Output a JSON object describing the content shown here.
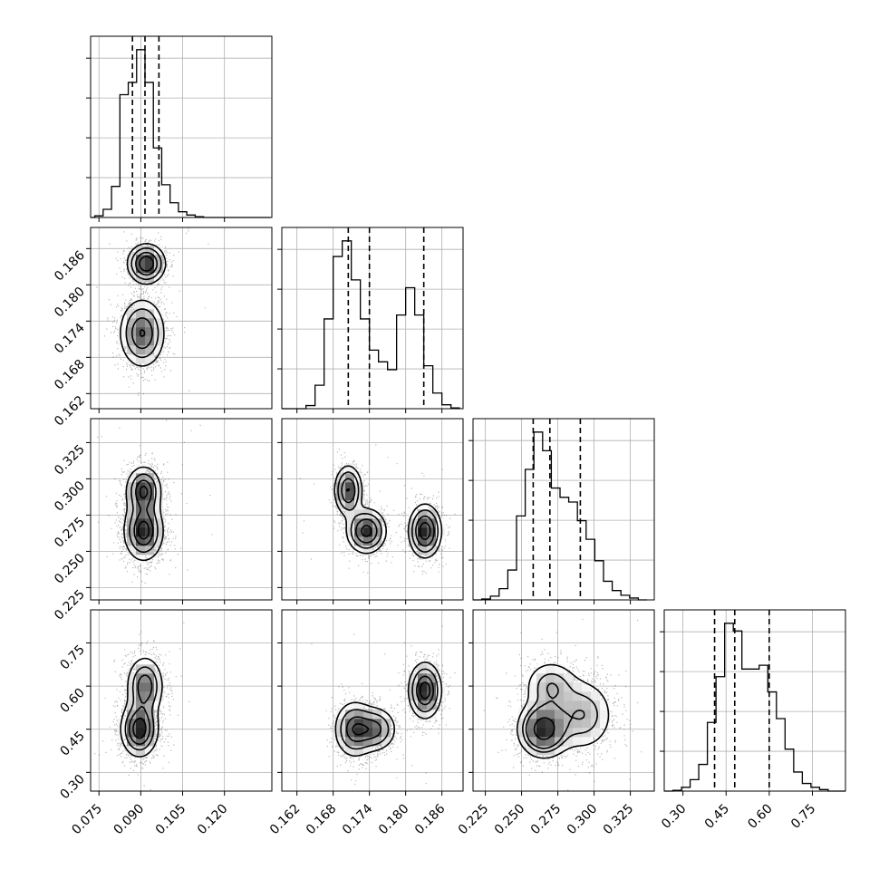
{
  "chart_data": {
    "type": "corner",
    "n_params": 4,
    "grid": true,
    "params": [
      {
        "range": [
          0.072,
          0.137
        ],
        "ticks": [
          0.075,
          0.09,
          0.105,
          0.12
        ],
        "tick_labels": [
          "0.075",
          "0.090",
          "0.105",
          "0.120"
        ],
        "quantiles": [
          0.087,
          0.0915,
          0.0965
        ]
      },
      {
        "range": [
          0.1595,
          0.1895
        ],
        "ticks": [
          0.162,
          0.168,
          0.174,
          0.18,
          0.186
        ],
        "tick_labels": [
          "0.162",
          "0.168",
          "0.174",
          "0.180",
          "0.186"
        ],
        "quantiles": [
          0.1705,
          0.174,
          0.183
        ]
      },
      {
        "range": [
          0.2165,
          0.3415
        ],
        "ticks": [
          0.225,
          0.25,
          0.275,
          0.3,
          0.325
        ],
        "tick_labels": [
          "0.225",
          "0.250",
          "0.275",
          "0.300",
          "0.325"
        ],
        "quantiles": [
          0.258,
          0.2695,
          0.2905
        ]
      },
      {
        "range": [
          0.235,
          0.865
        ],
        "ticks": [
          0.3,
          0.45,
          0.6,
          0.75
        ],
        "tick_labels": [
          "0.30",
          "0.45",
          "0.60",
          "0.75"
        ],
        "quantiles": [
          0.41,
          0.48,
          0.6
        ]
      }
    ],
    "histograms": [
      {
        "edges": [
          0.0705,
          0.0735,
          0.0765,
          0.0795,
          0.0825,
          0.0855,
          0.0885,
          0.0915,
          0.0945,
          0.0975,
          0.1005,
          0.1035,
          0.1065,
          0.1095,
          0.1125,
          0.1155,
          0.1185,
          0.1215,
          0.1245,
          0.1275,
          0.1305,
          0.1335,
          0.1365
        ],
        "counts": [
          0,
          2,
          10,
          38,
          150,
          165,
          205,
          165,
          85,
          40,
          18,
          7,
          3,
          1,
          0,
          0,
          0,
          0,
          0,
          0,
          0,
          0
        ]
      },
      {
        "edges": [
          0.159,
          0.1605,
          0.162,
          0.1635,
          0.165,
          0.1665,
          0.168,
          0.1695,
          0.171,
          0.1725,
          0.174,
          0.1755,
          0.177,
          0.1785,
          0.18,
          0.1815,
          0.183,
          0.1845,
          0.186,
          0.1875,
          0.189
        ],
        "counts": [
          0,
          0,
          0,
          4,
          30,
          115,
          195,
          215,
          165,
          115,
          75,
          60,
          50,
          120,
          155,
          120,
          55,
          20,
          5,
          1
        ]
      },
      {
        "edges": [
          0.2165,
          0.2225,
          0.2285,
          0.2345,
          0.2405,
          0.2465,
          0.2525,
          0.2585,
          0.2645,
          0.2705,
          0.2765,
          0.2825,
          0.2885,
          0.2945,
          0.3005,
          0.3065,
          0.3125,
          0.3185,
          0.3245,
          0.3305,
          0.3365
        ],
        "counts": [
          0,
          1,
          4,
          12,
          32,
          90,
          140,
          180,
          160,
          120,
          110,
          105,
          85,
          65,
          42,
          20,
          10,
          5,
          2,
          0
        ]
      },
      {
        "edges": [
          0.235,
          0.265,
          0.295,
          0.325,
          0.355,
          0.385,
          0.415,
          0.445,
          0.475,
          0.505,
          0.535,
          0.565,
          0.595,
          0.625,
          0.655,
          0.685,
          0.715,
          0.745,
          0.775,
          0.805,
          0.835,
          0.865
        ],
        "counts": [
          0,
          1,
          5,
          15,
          35,
          90,
          150,
          220,
          210,
          160,
          160,
          165,
          130,
          95,
          55,
          25,
          10,
          5,
          2,
          0,
          0
        ]
      }
    ],
    "joint": [
      {
        "x_param": 0,
        "y_param": 1,
        "blobs": [
          {
            "cx": 0.0905,
            "cy": 0.172,
            "sx": 0.004,
            "sy": 0.0028,
            "w": 0.62
          },
          {
            "cx": 0.092,
            "cy": 0.1835,
            "sx": 0.0033,
            "sy": 0.0016,
            "w": 0.38
          }
        ]
      },
      {
        "x_param": 0,
        "y_param": 2,
        "blobs": [
          {
            "cx": 0.091,
            "cy": 0.264,
            "sx": 0.0038,
            "sy": 0.011,
            "w": 0.6
          },
          {
            "cx": 0.091,
            "cy": 0.292,
            "sx": 0.0034,
            "sy": 0.009,
            "w": 0.4
          }
        ]
      },
      {
        "x_param": 1,
        "y_param": 2,
        "blobs": [
          {
            "cx": 0.1705,
            "cy": 0.292,
            "sx": 0.0012,
            "sy": 0.009,
            "w": 0.26
          },
          {
            "cx": 0.1735,
            "cy": 0.264,
            "sx": 0.0017,
            "sy": 0.008,
            "w": 0.36
          },
          {
            "cx": 0.1832,
            "cy": 0.264,
            "sx": 0.0014,
            "sy": 0.0095,
            "w": 0.38
          }
        ]
      },
      {
        "x_param": 0,
        "y_param": 3,
        "blobs": [
          {
            "cx": 0.0895,
            "cy": 0.45,
            "sx": 0.0035,
            "sy": 0.05,
            "w": 0.55
          },
          {
            "cx": 0.0915,
            "cy": 0.6,
            "sx": 0.0035,
            "sy": 0.055,
            "w": 0.45
          }
        ]
      },
      {
        "x_param": 1,
        "y_param": 3,
        "blobs": [
          {
            "cx": 0.1715,
            "cy": 0.45,
            "sx": 0.0017,
            "sy": 0.05,
            "w": 0.36
          },
          {
            "cx": 0.175,
            "cy": 0.45,
            "sx": 0.0018,
            "sy": 0.04,
            "w": 0.26
          },
          {
            "cx": 0.1832,
            "cy": 0.585,
            "sx": 0.0014,
            "sy": 0.05,
            "w": 0.38
          }
        ]
      },
      {
        "x_param": 2,
        "y_param": 3,
        "blobs": [
          {
            "cx": 0.265,
            "cy": 0.45,
            "sx": 0.009,
            "sy": 0.05,
            "w": 0.45
          },
          {
            "cx": 0.27,
            "cy": 0.6,
            "sx": 0.01,
            "sy": 0.05,
            "w": 0.2
          },
          {
            "cx": 0.292,
            "cy": 0.5,
            "sx": 0.012,
            "sy": 0.07,
            "w": 0.35
          }
        ]
      }
    ]
  }
}
